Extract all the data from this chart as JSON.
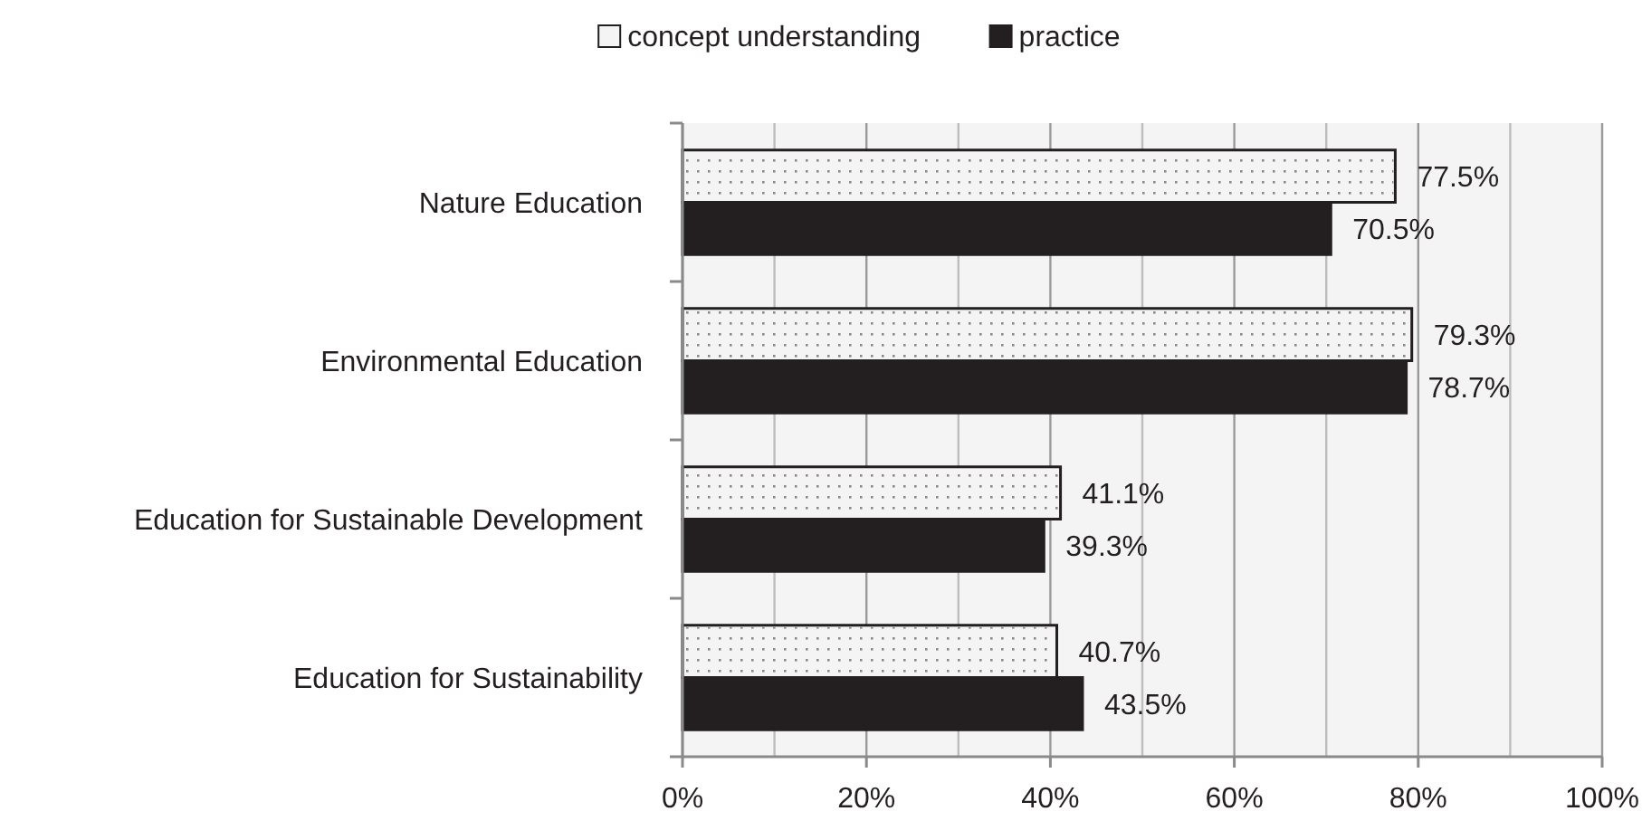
{
  "chart_data": {
    "type": "bar",
    "orientation": "horizontal",
    "categories": [
      "Nature Education",
      "Environmental Education",
      "Education for Sustainable Development",
      "Education for Sustainability"
    ],
    "series": [
      {
        "name": "concept understanding",
        "color": "#f4f4f4",
        "values": [
          77.5,
          79.3,
          41.1,
          40.7
        ],
        "value_labels": [
          "77.5%",
          "79.3%",
          "41.1%",
          "40.7%"
        ]
      },
      {
        "name": "practice",
        "color": "#231f20",
        "values": [
          70.5,
          78.7,
          39.3,
          43.5
        ],
        "value_labels": [
          "70.5%",
          "78.7%",
          "39.3%",
          "43.5%"
        ]
      }
    ],
    "xlim": [
      0,
      100
    ],
    "xticks": [
      {
        "value": 0,
        "label": "0%"
      },
      {
        "value": 10,
        "label": null
      },
      {
        "value": 20,
        "label": "20%"
      },
      {
        "value": 30,
        "label": null
      },
      {
        "value": 40,
        "label": "40%"
      },
      {
        "value": 50,
        "label": null
      },
      {
        "value": 60,
        "label": "60%"
      },
      {
        "value": 70,
        "label": null
      },
      {
        "value": 80,
        "label": "80%"
      },
      {
        "value": 90,
        "label": null
      },
      {
        "value": 100,
        "label": "100%"
      }
    ],
    "grid": "x",
    "legend": "top"
  }
}
